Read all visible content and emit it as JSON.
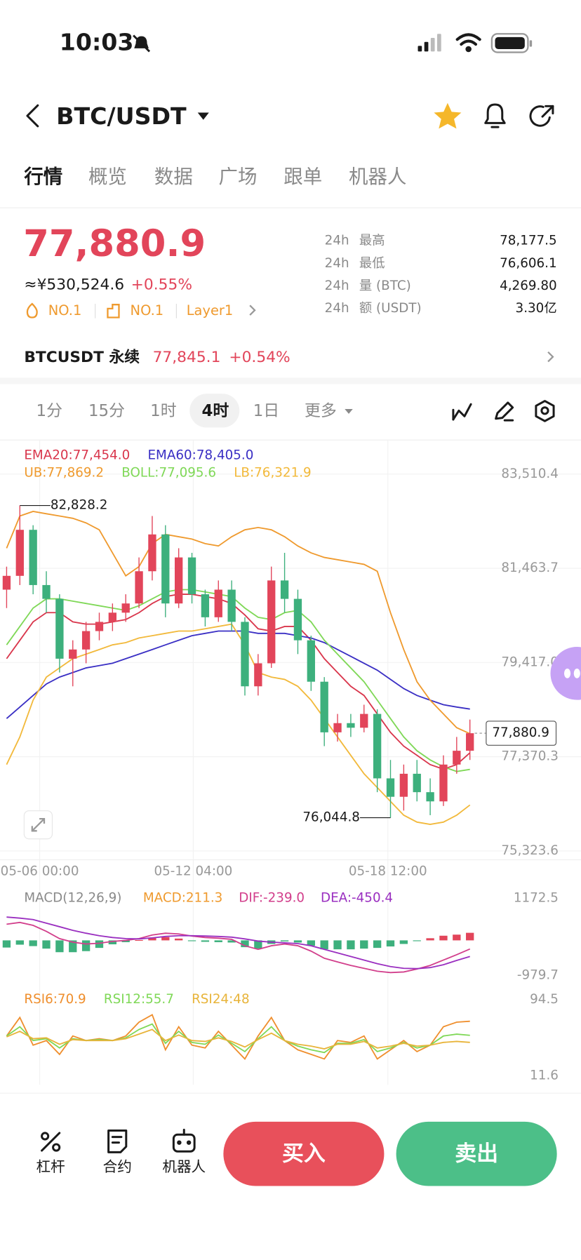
{
  "status_bar": {
    "time": "10:03"
  },
  "header": {
    "symbol": "BTC/USDT"
  },
  "tabs": [
    "行情",
    "概览",
    "数据",
    "广场",
    "跟单",
    "机器人"
  ],
  "ticker": {
    "price": "77,880.9",
    "cny": "≈¥530,524.6",
    "change": "+0.55%",
    "tags": [
      "NO.1",
      "NO.1",
      "Layer1"
    ],
    "stats": [
      {
        "period": "24h",
        "label": "最高",
        "value": "78,177.5"
      },
      {
        "period": "24h",
        "label": "最低",
        "value": "76,606.1"
      },
      {
        "period": "24h",
        "label": "量 (BTC)",
        "value": "4,269.80"
      },
      {
        "period": "24h",
        "label": "额 (USDT)",
        "value": "3.30亿"
      }
    ]
  },
  "perpetual": {
    "name": "BTCUSDT 永续",
    "price": "77,845.1",
    "change": "+0.54%"
  },
  "intervals": [
    "1分",
    "15分",
    "1时",
    "4时",
    "1日",
    "更多"
  ],
  "chart_data": [
    {
      "type": "candlestick",
      "colors": {
        "up": "#e2455a",
        "down": "#3db07d"
      },
      "candles": {
        "open": [
          81000,
          81300,
          82300,
          81100,
          80800,
          79500,
          79700,
          80100,
          80300,
          80500,
          80700,
          81400,
          82200,
          80700,
          81700,
          80900,
          80400,
          81000,
          80300,
          78900,
          79400,
          81200,
          80800,
          79900,
          79000,
          77900,
          78100,
          78000,
          78300,
          76900,
          76500,
          77000,
          76600,
          76400,
          77200,
          77500
        ],
        "high": [
          81500,
          82828.2,
          82400,
          81400,
          80900,
          79900,
          80300,
          80500,
          80700,
          80900,
          81700,
          82600,
          82400,
          81900,
          81800,
          81000,
          81200,
          81200,
          80400,
          79600,
          81500,
          81800,
          81000,
          80000,
          79100,
          78300,
          78300,
          78500,
          78400,
          77300,
          77200,
          77300,
          76900,
          77400,
          77800,
          78177.5
        ],
        "low": [
          80600,
          81100,
          80900,
          80500,
          79200,
          78900,
          79400,
          79900,
          80100,
          80300,
          80600,
          81200,
          80400,
          80600,
          80700,
          80200,
          80300,
          80100,
          78700,
          78700,
          79300,
          80500,
          79600,
          78800,
          77600,
          77700,
          77800,
          77900,
          76600,
          76044.8,
          76200,
          76400,
          76100,
          76300,
          77000,
          77300
        ],
        "close": [
          81300,
          82300,
          81100,
          80800,
          79500,
          79700,
          80100,
          80300,
          80500,
          80700,
          81400,
          82200,
          80700,
          81700,
          80900,
          80400,
          81000,
          80300,
          78900,
          79400,
          81200,
          80800,
          79900,
          79000,
          77900,
          78100,
          78000,
          78300,
          76900,
          76500,
          77000,
          76600,
          76400,
          77200,
          77500,
          77880.9
        ]
      },
      "series": [
        {
          "name": "EMA20:77,454.0",
          "color": "#d9364c",
          "values": [
            79500,
            79900,
            80300,
            80500,
            80500,
            80300,
            80250,
            80250,
            80300,
            80350,
            80500,
            80700,
            80850,
            80900,
            80900,
            80850,
            80800,
            80700,
            80450,
            80150,
            80100,
            80200,
            80200,
            79900,
            79500,
            79200,
            78900,
            78700,
            78300,
            77900,
            77600,
            77400,
            77200,
            77100,
            77200,
            77454
          ]
        },
        {
          "name": "EMA60:78,405.0",
          "color": "#3a2fc4",
          "values": [
            78200,
            78450,
            78700,
            78950,
            79100,
            79200,
            79300,
            79350,
            79400,
            79500,
            79600,
            79700,
            79800,
            79900,
            80000,
            80050,
            80100,
            80100,
            80100,
            80050,
            80050,
            80050,
            80000,
            79950,
            79850,
            79700,
            79550,
            79400,
            79250,
            79050,
            78850,
            78700,
            78600,
            78500,
            78450,
            78405
          ]
        },
        {
          "name": "UB:77,869.2",
          "color": "#ef9a2e",
          "values": [
            81900,
            82600,
            82700,
            82650,
            82600,
            82550,
            82450,
            82300,
            81800,
            81300,
            81500,
            82000,
            82200,
            82150,
            82100,
            82000,
            81950,
            82150,
            82300,
            82350,
            82300,
            82150,
            81950,
            81800,
            81700,
            81650,
            81600,
            81550,
            81400,
            80500,
            79700,
            79000,
            78600,
            78300,
            78000,
            77869.2
          ]
        },
        {
          "name": "BOLL:77,095.6",
          "color": "#7fd857",
          "values": [
            79800,
            80200,
            80600,
            80800,
            80800,
            80750,
            80700,
            80650,
            80600,
            80550,
            80650,
            80800,
            80950,
            81000,
            81000,
            80950,
            80900,
            80850,
            80600,
            80400,
            80350,
            80500,
            80550,
            80300,
            79900,
            79600,
            79300,
            79000,
            78600,
            78200,
            77800,
            77500,
            77300,
            77150,
            77050,
            77095.6
          ]
        },
        {
          "name": "LB:76,321.9",
          "color": "#f2b93b",
          "values": [
            77200,
            77800,
            78600,
            79100,
            79300,
            79500,
            79600,
            79700,
            79800,
            79850,
            79950,
            80000,
            80050,
            80100,
            80100,
            80150,
            80200,
            80250,
            79800,
            79200,
            79100,
            79050,
            78900,
            78600,
            78200,
            77800,
            77400,
            77000,
            76700,
            76400,
            76100,
            75950,
            75900,
            75950,
            76100,
            76321.9
          ]
        }
      ],
      "ylim": [
        75131,
        84243
      ],
      "yticks": [
        {
          "value": 83510.4,
          "label": "83,510.4"
        },
        {
          "value": 81463.7,
          "label": "81,463.7"
        },
        {
          "value": 79417.0,
          "label": "79,417.0"
        },
        {
          "value": 77370.3,
          "label": "77,370.3"
        },
        {
          "value": 75323.6,
          "label": "75,323.6"
        }
      ],
      "xlim": [
        0,
        36
      ],
      "xticks": [
        {
          "value": 3,
          "label": "05-06 00:00"
        },
        {
          "value": 14.6,
          "label": "05-12 04:00"
        },
        {
          "value": 29.3,
          "label": "05-18 12:00"
        }
      ],
      "grid": true,
      "high_label": "82,828.2",
      "low_label": "76,044.8",
      "last_label": "77,880.9"
    },
    {
      "type": "macd",
      "title": "MACD(12,26,9)",
      "colors": {
        "up": "#e2455a",
        "down": "#3db07d"
      },
      "series": [
        {
          "name": "MACD:211.3",
          "color": "#ef9a2e",
          "kind": "bar",
          "values": [
            -200,
            -120,
            -160,
            -230,
            -330,
            -330,
            -300,
            -210,
            -110,
            -50,
            10,
            80,
            90,
            50,
            -10,
            -40,
            -50,
            -60,
            -190,
            -230,
            -100,
            -30,
            -60,
            -150,
            -250,
            -250,
            -250,
            -230,
            -210,
            -170,
            -100,
            -10,
            60,
            130,
            160,
            211.3
          ]
        },
        {
          "name": "DIF:-239.0",
          "color": "#d23f8c",
          "kind": "line",
          "values": [
            450,
            500,
            420,
            250,
            50,
            -50,
            -100,
            -80,
            -30,
            0,
            50,
            150,
            200,
            180,
            120,
            80,
            60,
            30,
            -150,
            -250,
            -150,
            -100,
            -150,
            -300,
            -500,
            -600,
            -700,
            -780,
            -860,
            -900,
            -880,
            -800,
            -700,
            -550,
            -400,
            -239
          ]
        },
        {
          "name": "DEA:-450.4",
          "color": "#9a2fc0",
          "kind": "line",
          "values": [
            650,
            620,
            580,
            480,
            380,
            280,
            200,
            130,
            80,
            50,
            40,
            70,
            110,
            130,
            130,
            120,
            110,
            90,
            40,
            -20,
            -50,
            -70,
            -90,
            -150,
            -250,
            -350,
            -450,
            -550,
            -650,
            -730,
            -780,
            -790,
            -760,
            -680,
            -560,
            -450.4
          ]
        }
      ],
      "ylim": [
        -979.7,
        1172.5
      ],
      "yticks": [
        1172.5,
        -979.7
      ]
    },
    {
      "type": "rsi",
      "series": [
        {
          "name": "RSI6:70.9",
          "color": "#ef8f2e",
          "values": [
            55,
            75,
            45,
            50,
            35,
            55,
            50,
            52,
            50,
            55,
            70,
            78,
            40,
            65,
            45,
            42,
            60,
            45,
            30,
            55,
            75,
            50,
            40,
            35,
            30,
            50,
            48,
            55,
            30,
            40,
            50,
            38,
            45,
            65,
            70,
            70.9
          ]
        },
        {
          "name": "RSI12:55.7",
          "color": "#7fd857",
          "values": [
            55,
            65,
            50,
            52,
            42,
            52,
            50,
            51,
            50,
            53,
            62,
            68,
            47,
            60,
            48,
            46,
            56,
            47,
            38,
            52,
            65,
            50,
            44,
            40,
            37,
            47,
            47,
            51,
            38,
            42,
            48,
            42,
            45,
            55,
            57,
            55.7
          ]
        },
        {
          "name": "RSI24:48",
          "color": "#e8b43a",
          "values": [
            54,
            60,
            52,
            53,
            46,
            51,
            50,
            50,
            50,
            52,
            57,
            62,
            50,
            56,
            50,
            49,
            53,
            49,
            43,
            51,
            58,
            50,
            46,
            44,
            41,
            46,
            46,
            49,
            42,
            44,
            47,
            44,
            45,
            48,
            49,
            48
          ]
        }
      ],
      "ylim": [
        11.6,
        94.5
      ],
      "yticks": [
        94.5,
        11.6
      ]
    }
  ],
  "bottom_bar": {
    "tools": [
      "杠杆",
      "合约",
      "机器人"
    ],
    "buy": "买入",
    "sell": "卖出"
  }
}
